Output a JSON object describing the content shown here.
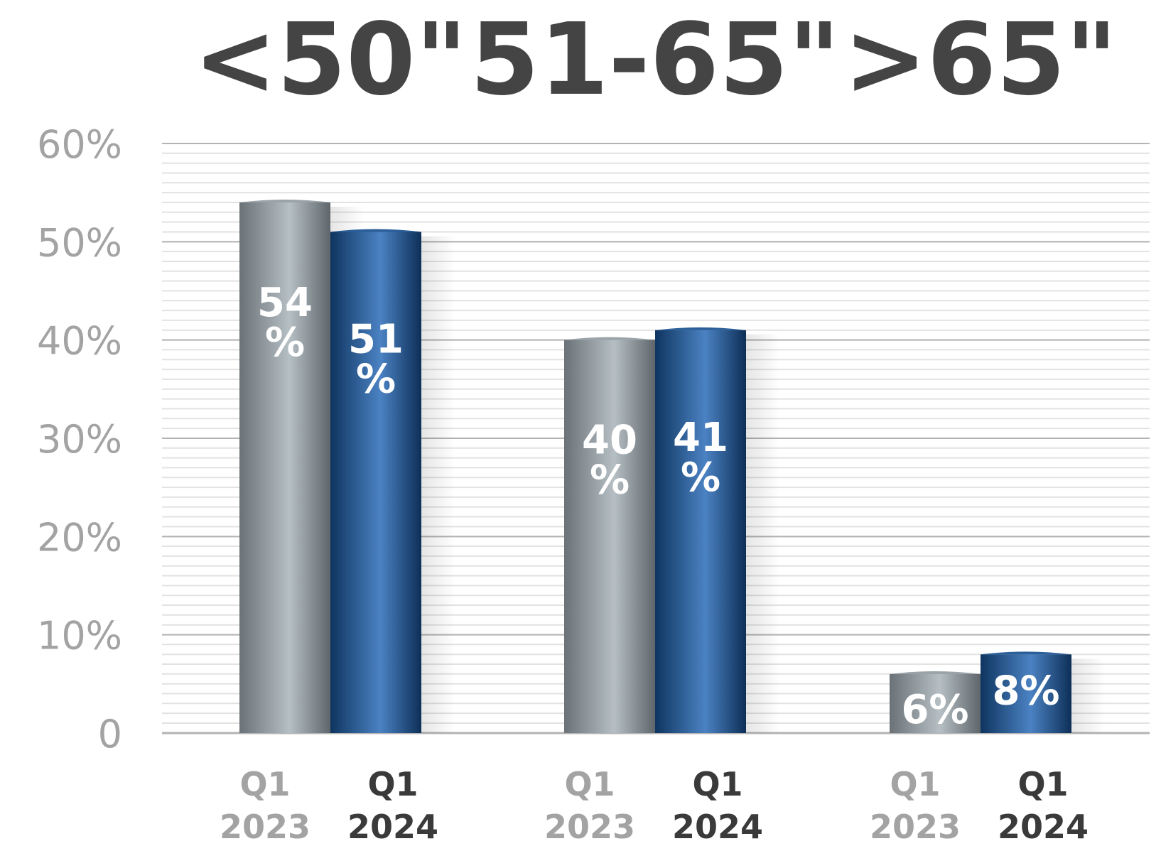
{
  "chart_data": {
    "type": "bar",
    "categories": [
      "<50\"",
      "51-65\"",
      ">65\""
    ],
    "series": [
      {
        "quarter": "Q1",
        "year": "2023",
        "values": [
          54,
          40,
          6
        ],
        "value_labels": [
          [
            "54",
            "%"
          ],
          [
            "40",
            "%"
          ],
          [
            "6%"
          ]
        ],
        "color": "#8f979c"
      },
      {
        "quarter": "Q1",
        "year": "2024",
        "values": [
          51,
          41,
          8
        ],
        "value_labels": [
          [
            "51",
            "%"
          ],
          [
            "41",
            "%"
          ],
          [
            "8%"
          ]
        ],
        "color": "#1f4f86"
      }
    ],
    "yticks": [
      "0",
      "10%",
      "20%",
      "30%",
      "40%",
      "50%",
      "60%"
    ],
    "ylim": [
      0,
      60
    ],
    "grid": true,
    "colors": {
      "title": "#444444",
      "tick": "#a3a3a3",
      "series2023_label": "#a3a3a3",
      "series2024_label": "#3a3a3a"
    }
  }
}
